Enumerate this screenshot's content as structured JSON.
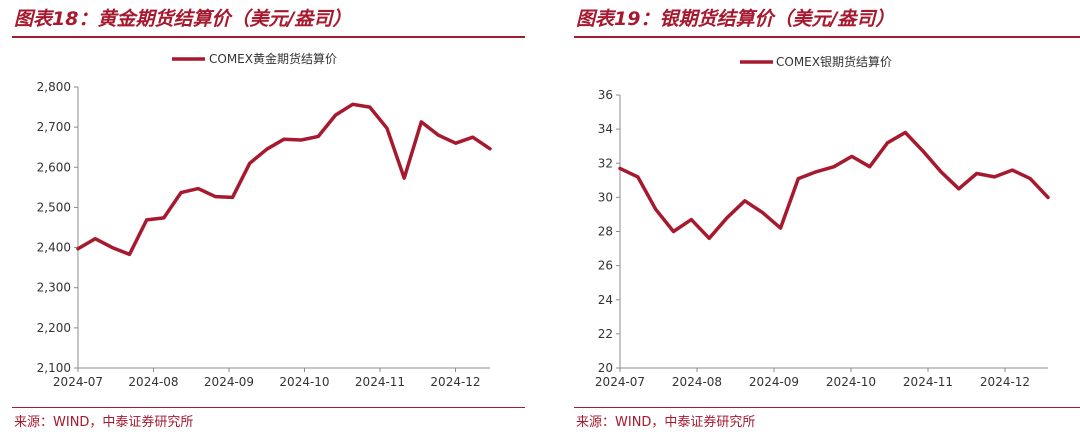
{
  "charts": [
    {
      "title": "图表18：黄金期货结算价（美元/盎司）",
      "source": "来源：WIND，中泰证券研究所"
    },
    {
      "title": "图表19：银期货结算价（美元/盎司）",
      "source": "来源：WIND，中泰证券研究所"
    }
  ],
  "chart_data": [
    {
      "type": "line",
      "title": "图表18：黄金期货结算价（美元/盎司）",
      "series": [
        {
          "name": "COMEX黄金期货结算价",
          "color": "#a6192e",
          "values": [
            2397,
            2422,
            2400,
            2383,
            2469,
            2474,
            2537,
            2547,
            2527,
            2525,
            2610,
            2645,
            2670,
            2668,
            2677,
            2730,
            2757,
            2750,
            2697,
            2573,
            2713,
            2680,
            2660,
            2675,
            2646
          ]
        }
      ],
      "x_tick_labels": [
        "2024-07",
        "2024-08",
        "2024-09",
        "2024-10",
        "2024-11",
        "2024-12"
      ],
      "y_tick_labels": [
        "2,100",
        "2,200",
        "2,300",
        "2,400",
        "2,500",
        "2,600",
        "2,700",
        "2,800"
      ],
      "ylim": [
        2100,
        2800
      ],
      "y_step": 100,
      "legend_position": "top-center",
      "grid": false
    },
    {
      "type": "line",
      "title": "图表19：银期货结算价（美元/盎司）",
      "series": [
        {
          "name": "COMEX银期货结算价",
          "color": "#a6192e",
          "values": [
            31.7,
            31.2,
            29.3,
            28.0,
            28.7,
            27.6,
            28.8,
            29.8,
            29.1,
            28.2,
            31.1,
            31.5,
            31.8,
            32.4,
            31.8,
            33.2,
            33.8,
            32.7,
            31.5,
            30.5,
            31.4,
            31.2,
            31.6,
            31.1,
            30.0
          ]
        }
      ],
      "x_tick_labels": [
        "2024-07",
        "2024-08",
        "2024-09",
        "2024-10",
        "2024-11",
        "2024-12"
      ],
      "y_tick_labels": [
        "20",
        "22",
        "24",
        "26",
        "28",
        "30",
        "32",
        "34",
        "36"
      ],
      "ylim": [
        20,
        36
      ],
      "y_step": 2,
      "legend_position": "top-center",
      "grid": false
    }
  ]
}
